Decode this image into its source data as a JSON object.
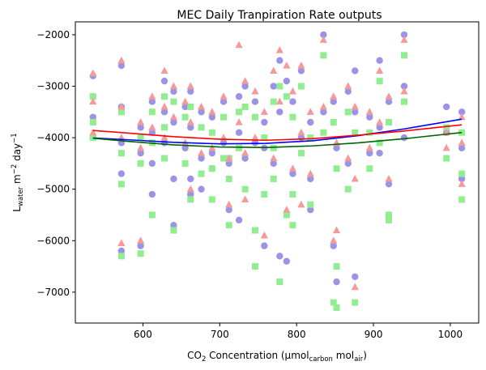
{
  "chart_data": {
    "type": "scatter",
    "title": "MEC Daily Tranpiration Rate outputs",
    "xlabel": {
      "base": "CO",
      "sub2": "2",
      "rest": " Concentration (µmol",
      "sub_carbon": "carbon",
      "mid": " mol",
      "sub_air": "air",
      "end": ")"
    },
    "ylabel": {
      "base": "L",
      "sub": "water",
      "mid": " m",
      "sup1": "−2",
      "rest": " day",
      "sup2": "−1"
    },
    "xlim": [
      512,
      1037
    ],
    "ylim": [
      -7600,
      -1750
    ],
    "xticks": [
      600,
      700,
      800,
      900,
      1000
    ],
    "yticks": [
      -7000,
      -6000,
      -5000,
      -4000,
      -3000,
      -2000
    ],
    "ytick_labels": [
      "−7000",
      "−6000",
      "−5000",
      "−4000",
      "−3000",
      "−2000"
    ],
    "grid": false,
    "legend": "none",
    "series": [
      {
        "marker": "circle",
        "color": "#9b94e6",
        "x": [
          535,
          535,
          535,
          535,
          572,
          572,
          572,
          572,
          572,
          597,
          597,
          597,
          612,
          612,
          612,
          628,
          628,
          628,
          640,
          640,
          640,
          655,
          655,
          662,
          662,
          662,
          676,
          676,
          676,
          690,
          690,
          705,
          705,
          712,
          712,
          725,
          725,
          733,
          733,
          746,
          746,
          758,
          758,
          770,
          770,
          778,
          778,
          787,
          787,
          795,
          795,
          806,
          806,
          818,
          818,
          835,
          835,
          848,
          848,
          852,
          852,
          867,
          867,
          876,
          876,
          895,
          895,
          908,
          908,
          920,
          920,
          940,
          940,
          940,
          995,
          995,
          1015,
          1015,
          1015,
          612,
          640,
          690,
          725,
          778,
          818,
          876,
          908,
          758,
          662
        ],
        "y": [
          -2800,
          -3200,
          -3600,
          -4000,
          -2600,
          -3400,
          -4100,
          -4700,
          -6200,
          -3800,
          -4300,
          -6100,
          -3300,
          -3900,
          -4500,
          -2900,
          -3500,
          -4100,
          -3100,
          -3700,
          -5700,
          -3400,
          -4200,
          -3100,
          -3800,
          -5100,
          -3500,
          -4400,
          -5000,
          -3600,
          -4300,
          -3300,
          -4100,
          -4500,
          -5400,
          -3200,
          -3900,
          -3000,
          -4400,
          -3300,
          -4100,
          -3700,
          -6100,
          -3000,
          -4500,
          -2500,
          -3500,
          -2900,
          -6400,
          -3300,
          -4700,
          -2700,
          -4000,
          -3700,
          -4800,
          -2000,
          -3500,
          -3300,
          -6100,
          -6800,
          -4200,
          -3100,
          -4500,
          -3500,
          -6700,
          -3600,
          -4300,
          -2500,
          -3800,
          -3300,
          -4900,
          -2000,
          -3000,
          -4000,
          -3400,
          -3900,
          -3500,
          -4200,
          -4800,
          -5100,
          -4800,
          -4600,
          -5600,
          -6300,
          -5400,
          -2700,
          -4300,
          -4200,
          -4800
        ]
      },
      {
        "marker": "square",
        "color": "#90ee90",
        "x": [
          535,
          535,
          535,
          572,
          572,
          572,
          572,
          597,
          597,
          597,
          612,
          612,
          628,
          628,
          628,
          640,
          640,
          655,
          655,
          662,
          662,
          676,
          676,
          690,
          690,
          705,
          705,
          712,
          712,
          725,
          725,
          733,
          733,
          746,
          746,
          758,
          758,
          770,
          770,
          778,
          778,
          787,
          787,
          795,
          795,
          806,
          806,
          818,
          818,
          835,
          835,
          848,
          848,
          852,
          852,
          867,
          867,
          876,
          876,
          895,
          895,
          908,
          908,
          920,
          920,
          940,
          940,
          995,
          995,
          1015,
          1015,
          1015,
          612,
          690,
          746,
          795,
          852,
          920,
          770,
          712
        ],
        "y": [
          -3200,
          -3700,
          -4000,
          -3500,
          -4300,
          -4900,
          -6300,
          -4000,
          -4500,
          -6250,
          -3500,
          -5500,
          -3200,
          -3800,
          -4400,
          -3300,
          -5800,
          -3600,
          -4500,
          -3400,
          -5200,
          -3800,
          -4700,
          -3900,
          -4600,
          -3600,
          -4400,
          -4800,
          -5700,
          -3500,
          -4200,
          -3400,
          -5000,
          -3600,
          -6500,
          -4000,
          -5100,
          -3300,
          -4800,
          -3000,
          -6800,
          -3200,
          -5500,
          -3600,
          -5100,
          -3000,
          -4300,
          -4000,
          -5300,
          -2400,
          -3900,
          -3700,
          -7200,
          -7300,
          -4600,
          -3500,
          -5000,
          -3900,
          -7200,
          -3900,
          -4600,
          -2900,
          -4100,
          -3700,
          -5600,
          -2400,
          -3300,
          -3800,
          -4400,
          -3900,
          -4700,
          -5200,
          -4100,
          -5200,
          -5800,
          -5700,
          -6500,
          -5500,
          -4200,
          -4400
        ]
      },
      {
        "marker": "triangle",
        "color": "#f59a9a",
        "x": [
          535,
          535,
          535,
          572,
          572,
          572,
          572,
          597,
          597,
          597,
          612,
          612,
          628,
          628,
          628,
          640,
          640,
          655,
          655,
          662,
          662,
          676,
          676,
          690,
          690,
          705,
          705,
          712,
          712,
          725,
          725,
          733,
          733,
          746,
          746,
          758,
          758,
          770,
          770,
          778,
          778,
          787,
          787,
          795,
          795,
          806,
          806,
          818,
          818,
          835,
          835,
          848,
          848,
          852,
          852,
          867,
          867,
          876,
          876,
          895,
          895,
          908,
          908,
          920,
          920,
          940,
          940,
          995,
          995,
          1015,
          1015,
          1015,
          662,
          733,
          806,
          876
        ],
        "y": [
          -2750,
          -3300,
          -3900,
          -2500,
          -3400,
          -4000,
          -6050,
          -3700,
          -4200,
          -6000,
          -3200,
          -3800,
          -2700,
          -3400,
          -4000,
          -3000,
          -3600,
          -3300,
          -4100,
          -3000,
          -3700,
          -3400,
          -4300,
          -3500,
          -4200,
          -3200,
          -4000,
          -4400,
          -5300,
          -2200,
          -3700,
          -2900,
          -4300,
          -3100,
          -4000,
          -3500,
          -5900,
          -2700,
          -4400,
          -2300,
          -3300,
          -2600,
          -5400,
          -3100,
          -4600,
          -2600,
          -3900,
          -3500,
          -4700,
          -2100,
          -3400,
          -3200,
          -6000,
          -4100,
          -5800,
          -3000,
          -4400,
          -3400,
          -6900,
          -3500,
          -4200,
          -2700,
          -3700,
          -3200,
          -4800,
          -2100,
          -3100,
          -3900,
          -4200,
          -3600,
          -4100,
          -4900,
          -5000,
          -5200,
          -5300,
          -4800
        ]
      }
    ],
    "fit_lines": [
      {
        "color": "#0000ff",
        "x": [
          535,
          580,
          640,
          700,
          760,
          820,
          880,
          940,
          1015
        ],
        "y": [
          -4005,
          -4040,
          -4090,
          -4120,
          -4110,
          -4060,
          -3960,
          -3830,
          -3640
        ]
      },
      {
        "color": "#ff0000",
        "x": [
          535,
          580,
          640,
          700,
          760,
          820,
          880,
          940,
          1015
        ],
        "y": [
          -3860,
          -3910,
          -3980,
          -4030,
          -4050,
          -4020,
          -3950,
          -3870,
          -3750
        ]
      },
      {
        "color": "#006400",
        "x": [
          535,
          580,
          640,
          700,
          760,
          820,
          880,
          940,
          1015
        ],
        "y": [
          -4010,
          -4070,
          -4140,
          -4180,
          -4190,
          -4160,
          -4100,
          -4020,
          -3900
        ]
      }
    ]
  }
}
